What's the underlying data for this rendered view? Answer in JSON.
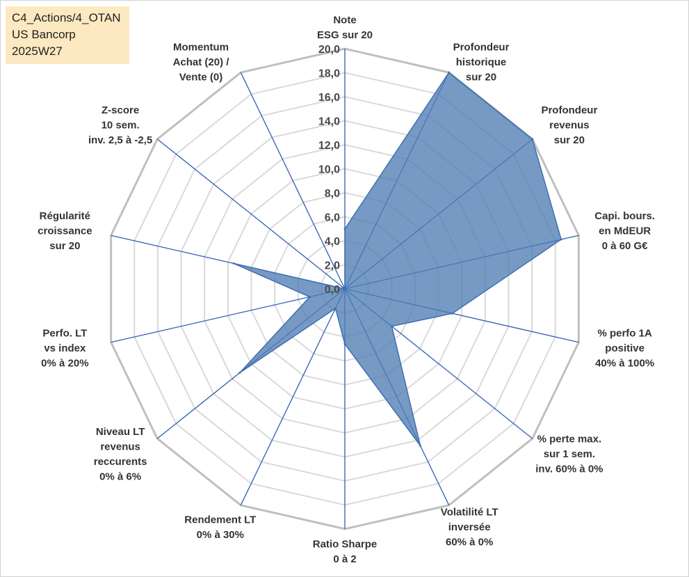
{
  "info_box": {
    "line1": "C4_Actions/4_OTAN",
    "line2": "US Bancorp",
    "line3": "2025W27"
  },
  "colors": {
    "fill": "#4f7eb4",
    "stroke": "#3f6fb0",
    "spoke": "#2f5fb0",
    "grid_outer": "#bfbfbf",
    "grid_inner": "#d9d9d9"
  },
  "chart_data": {
    "type": "radar",
    "title": "",
    "rmin": 0,
    "rmax": 20,
    "ticks": [
      "0,0",
      "2,0",
      "4,0",
      "6,0",
      "8,0",
      "10,0",
      "12,0",
      "14,0",
      "16,0",
      "18,0",
      "20,0"
    ],
    "tick_values": [
      0,
      2,
      4,
      6,
      8,
      10,
      12,
      14,
      16,
      18,
      20
    ],
    "axes": [
      {
        "label": [
          "Note",
          "ESG sur 20"
        ],
        "value": 5.0
      },
      {
        "label": [
          "Profondeur",
          "historique",
          "sur 20"
        ],
        "value": 20.0
      },
      {
        "label": [
          "Profondeur",
          "revenus",
          "sur 20"
        ],
        "value": 20.0
      },
      {
        "label": [
          "Capi. bours.",
          "en MdEUR",
          "0 à 60 G€"
        ],
        "value": 18.5
      },
      {
        "label": [
          "% perfo 1A",
          "positive",
          "40% à 100%"
        ],
        "value": 9.2
      },
      {
        "label": [
          "% perte max.",
          "sur 1 sem.",
          "inv. 60% à 0%"
        ],
        "value": 5.0
      },
      {
        "label": [
          "Volatilité LT",
          "inversée",
          "60% à 0%"
        ],
        "value": 14.5
      },
      {
        "label": [
          "Ratio Sharpe",
          "0 à 2"
        ],
        "value": 4.6
      },
      {
        "label": [
          "Rendement LT",
          "0% à 30%"
        ],
        "value": 1.8
      },
      {
        "label": [
          "Niveau LT",
          "revenus",
          "reccurents",
          "0% à 6%"
        ],
        "value": 11.2
      },
      {
        "label": [
          "Perfo. LT",
          "vs index",
          "0% à 20%"
        ],
        "value": 3.0
      },
      {
        "label": [
          "Régularité",
          "croissance",
          "sur 20"
        ],
        "value": 9.5
      },
      {
        "label": [
          "Z-score",
          "10 sem.",
          "inv. 2,5 à -2,5"
        ],
        "value": 0.0
      },
      {
        "label": [
          "Momentum",
          "Achat (20) /",
          "Vente (0)"
        ],
        "value": 0.0
      }
    ],
    "grid": true,
    "legend": "none"
  }
}
